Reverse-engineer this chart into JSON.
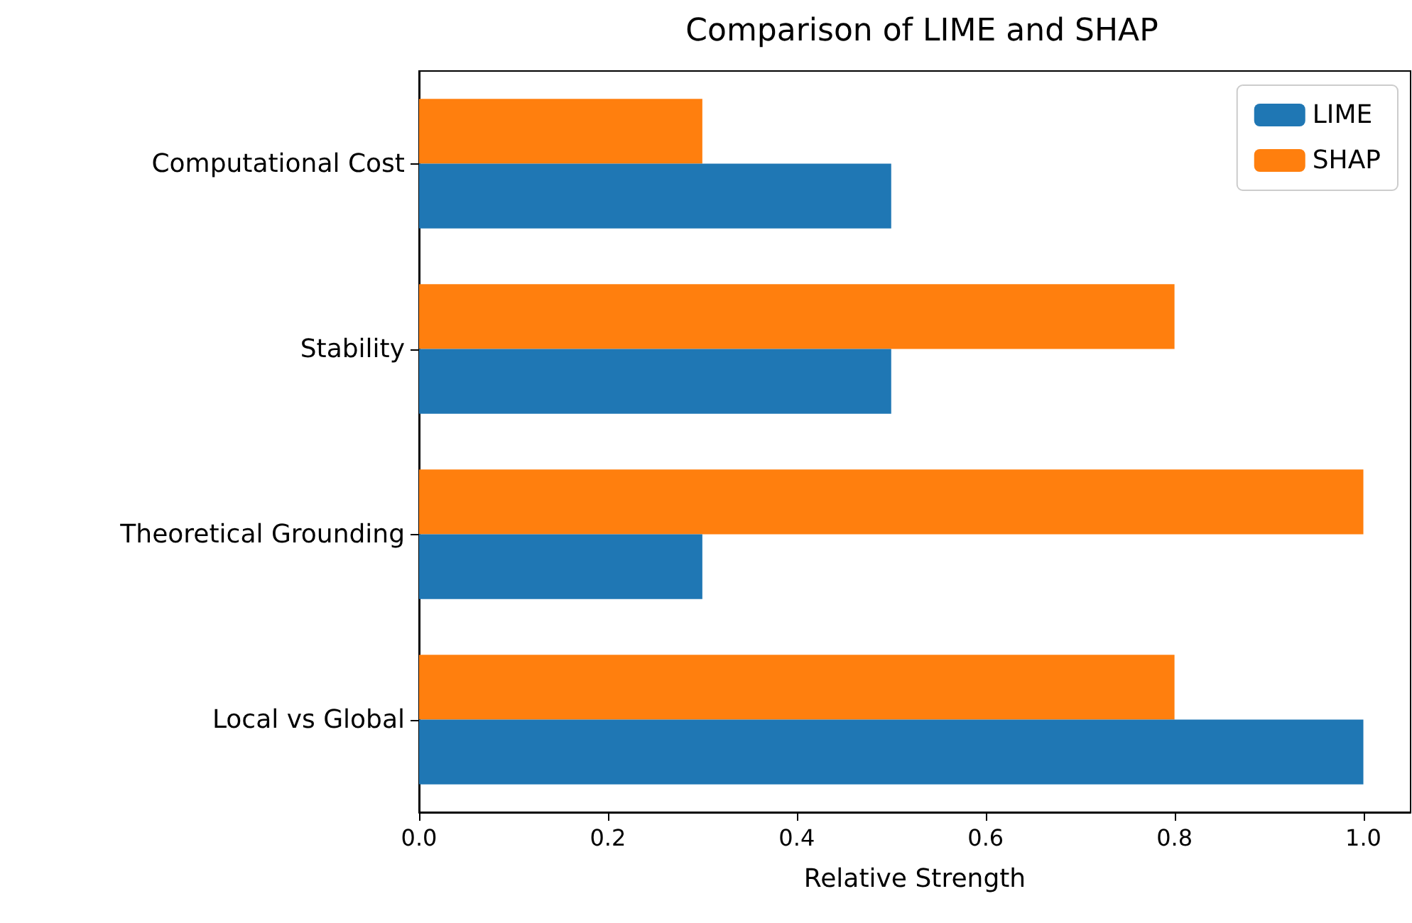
{
  "chart_data": {
    "type": "bar",
    "orientation": "horizontal",
    "title": "Comparison of LIME and SHAP",
    "xlabel": "Relative Strength",
    "categories": [
      "Computational Cost",
      "Stability",
      "Theoretical Grounding",
      "Local vs Global"
    ],
    "series": [
      {
        "name": "LIME",
        "color": "#1f77b4",
        "values": [
          0.5,
          0.5,
          0.3,
          1.0
        ]
      },
      {
        "name": "SHAP",
        "color": "#ff7f0e",
        "values": [
          0.3,
          0.8,
          1.0,
          0.8
        ]
      }
    ],
    "xlim": [
      0,
      1.05
    ],
    "xticks": [
      {
        "value": 0,
        "label": "0.0"
      },
      0.2,
      0.4,
      0.6,
      0.8,
      {
        "value": 1,
        "label": "1.0"
      }
    ],
    "legend": "top right",
    "grid": false
  }
}
